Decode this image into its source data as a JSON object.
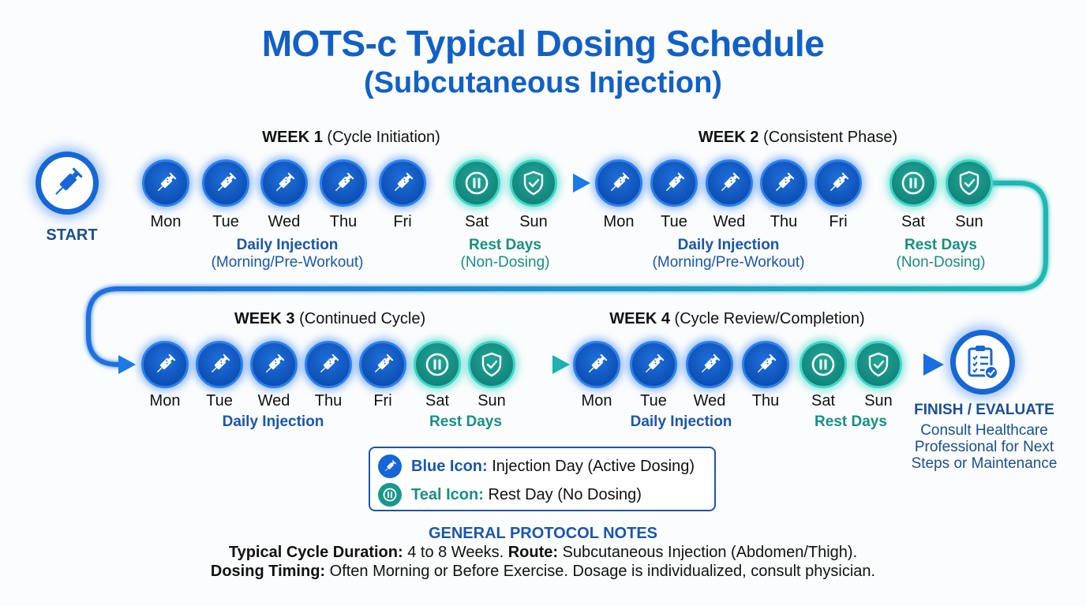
{
  "title": "MOTS-c Typical Dosing Schedule",
  "subtitle": "(Subcutaneous Injection)",
  "colors": {
    "primary_blue": "#1160c8",
    "teal": "#178f84",
    "text": "#111111"
  },
  "start": {
    "label": "START",
    "icon": "syringe-icon"
  },
  "finish": {
    "label": "FINISH / EVALUATE",
    "icon": "clipboard-check-icon",
    "lines": [
      "Consult Healthcare",
      "Professional for Next",
      "Steps or Maintenance"
    ]
  },
  "weeks": [
    {
      "label_bold": "WEEK 1",
      "label_rest": "(Cycle Initiation)",
      "days": [
        {
          "name": "Mon",
          "type": "injection"
        },
        {
          "name": "Tue",
          "type": "injection"
        },
        {
          "name": "Wed",
          "type": "injection"
        },
        {
          "name": "Thu",
          "type": "injection"
        },
        {
          "name": "Fri",
          "type": "injection"
        },
        {
          "name": "Sat",
          "type": "rest",
          "icon": "pause-icon"
        },
        {
          "name": "Sun",
          "type": "rest",
          "icon": "shield-check-icon"
        }
      ],
      "injection_label": "Daily Injection",
      "injection_note": "(Morning/Pre-Workout)",
      "rest_label": "Rest Days",
      "rest_note": "(Non-Dosing)"
    },
    {
      "label_bold": "WEEK 2",
      "label_rest": "(Consistent Phase)",
      "days": [
        {
          "name": "Mon",
          "type": "injection"
        },
        {
          "name": "Tue",
          "type": "injection"
        },
        {
          "name": "Wed",
          "type": "injection"
        },
        {
          "name": "Thu",
          "type": "injection"
        },
        {
          "name": "Fri",
          "type": "injection"
        },
        {
          "name": "Sat",
          "type": "rest",
          "icon": "pause-icon"
        },
        {
          "name": "Sun",
          "type": "rest",
          "icon": "shield-check-icon"
        }
      ],
      "injection_label": "Daily Injection",
      "injection_note": "(Morning/Pre-Workout)",
      "rest_label": "Rest Days",
      "rest_note": "(Non-Dosing)"
    },
    {
      "label_bold": "WEEK 3",
      "label_rest": "(Continued Cycle)",
      "days": [
        {
          "name": "Mon",
          "type": "injection"
        },
        {
          "name": "Tue",
          "type": "injection"
        },
        {
          "name": "Wed",
          "type": "injection"
        },
        {
          "name": "Thu",
          "type": "injection"
        },
        {
          "name": "Fri",
          "type": "injection"
        },
        {
          "name": "Sat",
          "type": "rest",
          "icon": "pause-icon"
        },
        {
          "name": "Sun",
          "type": "rest",
          "icon": "shield-check-icon"
        }
      ],
      "injection_label": "Daily Injection",
      "rest_label": "Rest Days"
    },
    {
      "label_bold": "WEEK 4",
      "label_rest": "(Cycle Review/Completion)",
      "days": [
        {
          "name": "Mon",
          "type": "injection"
        },
        {
          "name": "Tue",
          "type": "injection"
        },
        {
          "name": "Wed",
          "type": "injection"
        },
        {
          "name": "Thu",
          "type": "injection"
        },
        {
          "name": "Sat",
          "type": "rest",
          "icon": "pause-icon"
        },
        {
          "name": "Sun",
          "type": "rest",
          "icon": "shield-check-icon"
        }
      ],
      "injection_label": "Daily Injection",
      "rest_label": "Rest Days"
    }
  ],
  "legend": [
    {
      "key": "Blue Icon:",
      "desc": "Injection Day (Active Dosing)",
      "icon": "syringe-icon",
      "color": "#1160c8"
    },
    {
      "key": "Teal Icon:",
      "desc": "Rest Day (No Dosing)",
      "icon": "pause-icon",
      "color": "#178f84"
    }
  ],
  "notes": {
    "heading": "GENERAL PROTOCOL NOTES",
    "line1": [
      {
        "bold": "Typical Cycle Duration:",
        "text": " 4 to 8 Weeks. "
      },
      {
        "bold": "Route:",
        "text": " Subcutaneous Injection (Abdomen/Thigh)."
      }
    ],
    "line2": [
      {
        "bold": "Dosing Timing:",
        "text": " Often Morning or Before Exercise. Dosage is individualized, consult physician."
      }
    ]
  }
}
